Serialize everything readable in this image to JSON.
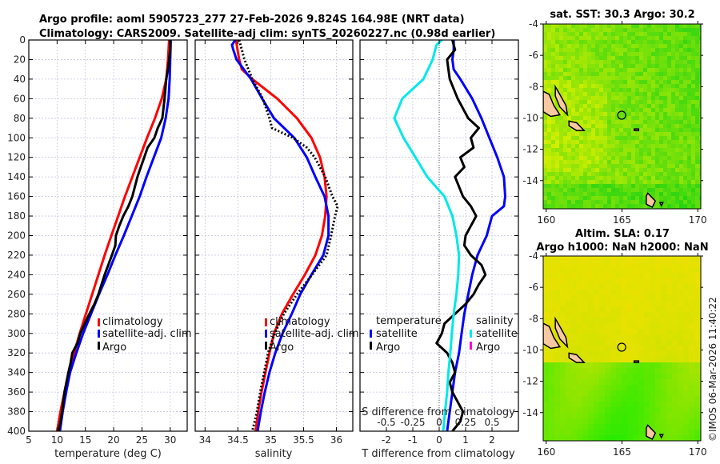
{
  "figure": {
    "title_line1": "Argo profile: aoml 5905723_277 27-Feb-2026 9.824S 164.98E (NRT data)",
    "title_line2": "Climatology: CARS2009. Satellite-adj clim: synTS_20260227.nc (0.98d earlier)",
    "credit": "©IMOS 06-Mar-2026 11:40:22"
  },
  "colors": {
    "climatology": "#ff0000",
    "satellite": "#0000ff",
    "argo": "#000000",
    "salinity_satellite": "#00e8e8",
    "salinity_argo": "#ff00cc",
    "land": "#f8c8a0"
  },
  "chart_data": [
    {
      "type": "line",
      "name": "temperature-profile",
      "xlabel": "temperature (deg C)",
      "ylabel": "",
      "xlim": [
        5,
        33
      ],
      "ylim": [
        400,
        0
      ],
      "xticks": [
        5,
        10,
        15,
        20,
        25,
        30
      ],
      "yticks": [
        0,
        20,
        40,
        60,
        80,
        100,
        120,
        140,
        160,
        180,
        200,
        220,
        240,
        260,
        280,
        300,
        320,
        340,
        360,
        380,
        400
      ],
      "grid": true,
      "legend": {
        "placement": "center-right",
        "entries": [
          "climatology",
          "satellite-adj. clim",
          "Argo"
        ]
      },
      "series": [
        {
          "name": "climatology",
          "color": "#ff0000",
          "dash": false,
          "depth": [
            0,
            20,
            40,
            60,
            80,
            100,
            120,
            140,
            160,
            180,
            200,
            220,
            240,
            260,
            280,
            300,
            320,
            340,
            360,
            380,
            400
          ],
          "values": [
            29.8,
            29.6,
            29.3,
            28.5,
            27.3,
            25.9,
            24.6,
            23.3,
            22.0,
            20.8,
            19.6,
            18.4,
            17.3,
            16.2,
            15.1,
            14.0,
            13.0,
            12.1,
            11.3,
            10.6,
            10.0
          ]
        },
        {
          "name": "satellite-adj. clim",
          "color": "#0000ff",
          "dash": false,
          "depth": [
            0,
            20,
            40,
            60,
            80,
            100,
            120,
            140,
            160,
            180,
            200,
            220,
            240,
            260,
            280,
            300,
            320,
            340,
            360,
            380,
            400
          ],
          "values": [
            30.1,
            30.0,
            29.9,
            29.7,
            29.2,
            28.4,
            27.1,
            25.8,
            24.6,
            23.2,
            21.8,
            20.3,
            18.9,
            17.4,
            16.0,
            14.6,
            13.4,
            12.3,
            11.6,
            11.0,
            10.5
          ]
        },
        {
          "name": "Argo",
          "color": "#000000",
          "dash": false,
          "depth": [
            0,
            10,
            20,
            30,
            40,
            60,
            80,
            90,
            100,
            110,
            120,
            130,
            140,
            160,
            170,
            180,
            190,
            200,
            210,
            220,
            240,
            260,
            270,
            280,
            290,
            300,
            310,
            320,
            330,
            340,
            360,
            380,
            400
          ],
          "values": [
            30.0,
            30.0,
            29.8,
            29.6,
            29.3,
            29.0,
            28.6,
            27.8,
            27.2,
            26.0,
            25.4,
            24.8,
            24.2,
            23.3,
            22.6,
            21.7,
            21.0,
            20.4,
            20.3,
            19.7,
            18.4,
            17.3,
            16.6,
            15.7,
            14.9,
            14.1,
            13.6,
            12.7,
            12.4,
            12.0,
            11.3,
            10.9,
            10.3
          ]
        }
      ]
    },
    {
      "type": "line",
      "name": "salinity-profile",
      "xlabel": "salinity",
      "ylabel": "",
      "xlim": [
        33.85,
        36.25
      ],
      "ylim": [
        400,
        0
      ],
      "xticks": [
        34,
        34.5,
        35,
        35.5,
        36
      ],
      "xticklabels": [
        "34",
        "34.5",
        "35",
        "35.5",
        "36"
      ],
      "grid": true,
      "legend": {
        "placement": "center-right",
        "entries": [
          "climatology",
          "satellite-adj. clim",
          "Argo"
        ]
      },
      "series": [
        {
          "name": "climatology",
          "color": "#ff0000",
          "dash": false,
          "depth": [
            0,
            20,
            30,
            40,
            60,
            80,
            100,
            120,
            140,
            160,
            180,
            200,
            220,
            240,
            260,
            280,
            300,
            320,
            340,
            360,
            380,
            400
          ],
          "values": [
            34.47,
            34.52,
            34.56,
            34.72,
            35.1,
            35.4,
            35.62,
            35.75,
            35.82,
            35.85,
            35.83,
            35.78,
            35.68,
            35.52,
            35.34,
            35.17,
            35.05,
            34.98,
            34.92,
            34.86,
            34.81,
            34.77
          ]
        },
        {
          "name": "satellite-adj. clim",
          "color": "#0000ff",
          "dash": false,
          "depth": [
            0,
            5,
            10,
            20,
            40,
            60,
            80,
            100,
            120,
            140,
            160,
            180,
            200,
            220,
            240,
            260,
            280,
            300,
            320,
            340,
            360,
            380,
            400
          ],
          "values": [
            34.46,
            34.41,
            34.43,
            34.48,
            34.7,
            34.87,
            35.05,
            35.36,
            35.55,
            35.68,
            35.82,
            35.88,
            35.88,
            35.8,
            35.62,
            35.45,
            35.32,
            35.18,
            35.07,
            34.98,
            34.91,
            34.85,
            34.8
          ]
        },
        {
          "name": "Argo",
          "color": "#000000",
          "dash": true,
          "depth": [
            0,
            20,
            40,
            60,
            80,
            90,
            100,
            110,
            120,
            140,
            160,
            170,
            180,
            200,
            220,
            240,
            260,
            280,
            300,
            320,
            340,
            360,
            380,
            400
          ],
          "values": [
            34.52,
            34.6,
            34.72,
            34.88,
            34.98,
            35.02,
            35.34,
            35.55,
            35.67,
            35.83,
            35.94,
            36.02,
            35.98,
            35.92,
            35.85,
            35.63,
            35.4,
            35.2,
            35.06,
            34.96,
            34.9,
            34.84,
            34.79,
            34.72
          ]
        }
      ]
    },
    {
      "type": "line",
      "name": "difference-profile",
      "xlabel": "T difference from climatology",
      "xlabel_top": "S difference from climatology",
      "ylabel": "",
      "xlim": [
        -3,
        3
      ],
      "ylim": [
        400,
        0
      ],
      "xticks": [
        -2,
        -1,
        0,
        1,
        2
      ],
      "top_xticks": [
        -0.5,
        -0.25,
        0,
        0.25,
        0.5
      ],
      "top_xticklabels": [
        "-0.5",
        "-0.25",
        "0",
        "0.25",
        "0.5"
      ],
      "grid": true,
      "zero_line": true,
      "legend": {
        "placement": "center",
        "temperature_header": "temperature",
        "salinity_header": "salinity",
        "temperature_entries": [
          "satellite",
          "Argo"
        ],
        "salinity_entries": [
          "satellite",
          "Argo"
        ]
      },
      "series": [
        {
          "name": "T satellite",
          "color": "#0000ff",
          "depth": [
            0,
            10,
            20,
            30,
            40,
            60,
            80,
            100,
            120,
            140,
            160,
            170,
            180,
            200,
            220,
            240,
            260,
            280,
            300,
            320,
            340,
            360,
            380,
            400
          ],
          "values": [
            0.55,
            0.55,
            0.5,
            0.55,
            0.8,
            1.25,
            1.6,
            1.9,
            2.2,
            2.45,
            2.5,
            2.45,
            2.0,
            1.8,
            1.45,
            1.25,
            1.1,
            0.95,
            0.85,
            0.75,
            0.6,
            0.5,
            0.4,
            0.3
          ]
        },
        {
          "name": "T Argo",
          "color": "#000000",
          "depth": [
            0,
            10,
            20,
            30,
            40,
            60,
            80,
            90,
            100,
            110,
            120,
            130,
            140,
            160,
            170,
            180,
            190,
            200,
            210,
            220,
            230,
            240,
            250,
            260,
            270,
            280,
            290,
            300,
            310,
            320,
            330,
            340,
            350,
            360,
            370,
            380,
            390,
            400
          ],
          "values": [
            0.5,
            0.6,
            0.3,
            0.35,
            0.4,
            0.7,
            1.1,
            1.5,
            1.2,
            1.3,
            0.8,
            0.95,
            0.6,
            0.9,
            1.2,
            1.4,
            1.2,
            1.0,
            0.95,
            1.2,
            1.6,
            1.75,
            1.5,
            1.3,
            1.0,
            0.6,
            0.2,
            0.1,
            -0.1,
            0.3,
            0.5,
            0.6,
            0.4,
            0.5,
            0.7,
            0.9,
            0.8,
            0.5
          ]
        },
        {
          "name": "S satellite",
          "color": "#00e8e8",
          "depth": [
            0,
            5,
            10,
            20,
            40,
            60,
            80,
            100,
            120,
            140,
            160,
            180,
            200,
            220,
            240,
            260,
            280,
            300,
            320,
            340,
            360,
            380,
            400
          ],
          "values": [
            0.1,
            -0.1,
            -0.15,
            -0.25,
            -0.6,
            -1.4,
            -1.7,
            -1.35,
            -0.9,
            -0.45,
            0.2,
            0.5,
            0.65,
            0.75,
            0.72,
            0.65,
            0.55,
            0.48,
            0.42,
            0.35,
            0.3,
            0.22,
            0.15
          ]
        }
      ]
    },
    {
      "type": "heatmap",
      "name": "sst-map",
      "title": "sat. SST: 30.3 Argo: 30.2",
      "xlim": [
        159.8,
        170.2
      ],
      "ylim": [
        -15.8,
        -4
      ],
      "xticks": [
        160,
        165,
        170
      ],
      "yticks": [
        -4,
        -6,
        -8,
        -10,
        -12,
        -14
      ],
      "argo_position": {
        "lon": 164.98,
        "lat": -9.824
      }
    },
    {
      "type": "heatmap",
      "name": "sla-map",
      "title_line1": "Altim. SLA: 0.17",
      "title_line2": "Argo h1000: NaN h2000: NaN",
      "xlim": [
        159.8,
        170.2
      ],
      "ylim": [
        -15.8,
        -4
      ],
      "xticks": [
        160,
        165,
        170
      ],
      "yticks": [
        -4,
        -6,
        -8,
        -10,
        -12,
        -14
      ],
      "argo_position": {
        "lon": 164.98,
        "lat": -9.824
      }
    }
  ]
}
